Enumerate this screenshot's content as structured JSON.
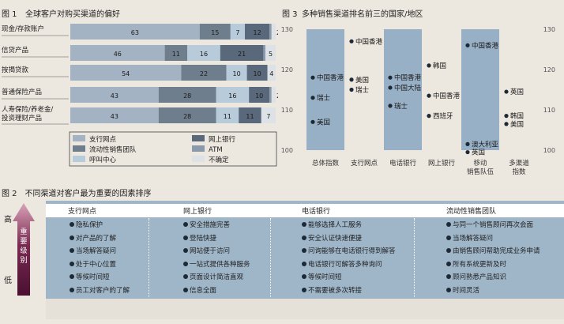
{
  "chart_data": [
    {
      "type": "bar",
      "orientation": "horizontal",
      "stacked": true,
      "title": "全球客户对购买渠道的偏好",
      "figure_number": "图 1",
      "categories": [
        "现金/存款账户",
        "信贷产品",
        "按揭贷款",
        "普通保险产品",
        "人寿保险/养老金/投资理财产品"
      ],
      "category_lines": [
        [
          "现金/存款账户"
        ],
        [
          "信贷产品"
        ],
        [
          "按揭贷款"
        ],
        [
          "普通保险产品"
        ],
        [
          "人寿保险/养老金/",
          "投资理财产品"
        ]
      ],
      "series": [
        {
          "name": "支行网点",
          "color": "#a3b3c3",
          "values": [
            63,
            46,
            54,
            43,
            43
          ],
          "labels": [
            "63",
            "46",
            "54",
            "43",
            "43"
          ]
        },
        {
          "name": "流动性销售团队",
          "color": "#6f7e8c",
          "values": [
            15,
            11,
            22,
            28,
            28
          ],
          "labels": [
            "15",
            "11",
            "22",
            "28",
            "28"
          ]
        },
        {
          "name": "呼叫中心",
          "color": "#b8cbdb",
          "values": [
            7,
            16,
            10,
            16,
            11
          ],
          "labels": [
            "7",
            "16",
            "10",
            "16",
            "11"
          ]
        },
        {
          "name": "网上银行",
          "color": "#59687a",
          "values": [
            12,
            21,
            10,
            10,
            11
          ],
          "labels": [
            "12",
            "21",
            "10",
            "10",
            "11"
          ]
        },
        {
          "name": "ATM",
          "color": "#8b9aab",
          "values": [
            1,
            1,
            0,
            1,
            0
          ],
          "labels": [
            "1",
            "1",
            "",
            "",
            ""
          ]
        },
        {
          "name": "不确定",
          "color": "#dde2e6",
          "values": [
            2,
            5,
            4,
            2,
            7
          ],
          "labels": [
            "2",
            "5",
            "4",
            "2",
            "7"
          ]
        }
      ],
      "legend": {
        "placement": "bottom",
        "left": [
          "支行网点",
          "流动性销售团队",
          "呼叫中心"
        ],
        "right": [
          "网上银行",
          "ATM",
          "不确定"
        ]
      }
    },
    {
      "type": "scatter",
      "title": "多种销售渠道排名前三的国家/地区",
      "figure_number": "图 3",
      "ylim": [
        100,
        130
      ],
      "yticks": [
        "100",
        "110",
        "120",
        "130"
      ],
      "categories": [
        "总体指数",
        "支行网点",
        "电话银行",
        "网上银行",
        "移动销售队伍",
        "多渠道指数"
      ],
      "category_lines": [
        [
          "总体指数"
        ],
        [
          "支行网点"
        ],
        [
          "电话银行"
        ],
        [
          "网上银行"
        ],
        [
          "移动",
          "销售队伍"
        ],
        [
          "多渠道",
          "指数"
        ]
      ],
      "highlighted_columns": [
        "总体指数",
        "电话银行",
        "移动销售队伍"
      ],
      "points": [
        {
          "category": "总体指数",
          "label": "中国香港",
          "y": 118
        },
        {
          "category": "总体指数",
          "label": "瑞士",
          "y": 113
        },
        {
          "category": "总体指数",
          "label": "美国",
          "y": 107
        },
        {
          "category": "支行网点",
          "label": "中国香港",
          "y": 127
        },
        {
          "category": "支行网点",
          "label": "美国",
          "y": 117.5
        },
        {
          "category": "支行网点",
          "label": "瑞士",
          "y": 115
        },
        {
          "category": "电话银行",
          "label": "中国香港",
          "y": 118
        },
        {
          "category": "电话银行",
          "label": "中国大陆",
          "y": 115.5
        },
        {
          "category": "电话银行",
          "label": "瑞士",
          "y": 111
        },
        {
          "category": "网上银行",
          "label": "韩国",
          "y": 121
        },
        {
          "category": "网上银行",
          "label": "中国香港",
          "y": 113.5
        },
        {
          "category": "网上银行",
          "label": "西班牙",
          "y": 108.5
        },
        {
          "category": "移动销售队伍",
          "label": "中国香港",
          "y": 126
        },
        {
          "category": "移动销售队伍",
          "label": "澳大利亚",
          "y": 101.5
        },
        {
          "category": "移动销售队伍",
          "label": "英国",
          "y": 99.5
        },
        {
          "category": "多渠道指数",
          "label": "英国",
          "y": 114.5
        },
        {
          "category": "多渠道指数",
          "label": "韩国",
          "y": 108.5
        },
        {
          "category": "多渠道指数",
          "label": "美国",
          "y": 106.5
        }
      ]
    },
    {
      "type": "table",
      "title": "不同渠道对客户最为重要的因素排序",
      "figure_number": "图 2",
      "axis": {
        "high": "高",
        "low": "低",
        "label": "重要级别"
      },
      "columns": [
        {
          "header": "支行网点",
          "items": [
            "隐私保护",
            "对产品的了解",
            "当场解答疑问",
            "处于中心位置",
            "等候时间短",
            "员工对客户的了解"
          ]
        },
        {
          "header": "网上银行",
          "items": [
            "安全措施完善",
            "登陆快捷",
            "网站便于访问",
            "一站式提供各种服务",
            "页面设计简洁直观",
            "信息全面"
          ]
        },
        {
          "header": "电话银行",
          "items": [
            "能够选择人工服务",
            "安全认证快速便捷",
            "问询能够在电话银行得到解答",
            "电话银行可解答多种询问",
            "等候时间短",
            "不需要被多次转接"
          ]
        },
        {
          "header": "流动性销售团队",
          "items": [
            "与同一个销售顾问再次会面",
            "当场解答疑问",
            "由销售顾问帮助完成业务申请",
            "所有系统更新及时",
            "顾问熟悉产品知识",
            "时间灵活"
          ]
        }
      ]
    }
  ]
}
